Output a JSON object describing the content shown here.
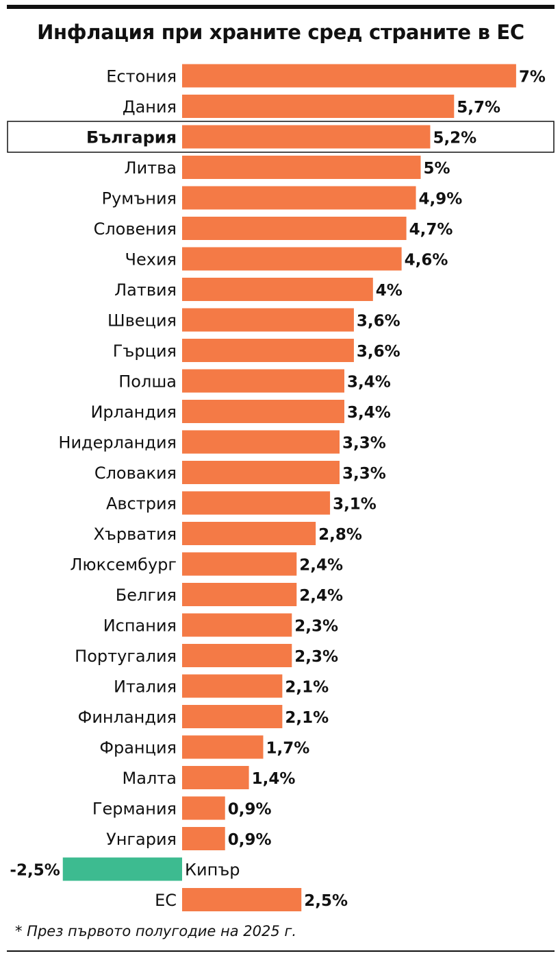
{
  "title": "Инфлация при храните сред страните в ЕС",
  "footnote": "* През първото полугодие на 2025 г.",
  "colors": {
    "positive": "#F47A46",
    "negative": "#3DBB90",
    "text": "#111111",
    "highlight_border": "#111111"
  },
  "chart_data": {
    "type": "bar",
    "orientation": "horizontal",
    "title": "Инфлация при храните сред страните в ЕС",
    "highlight": "България",
    "categories": [
      "Естония",
      "Дания",
      "България",
      "Литва",
      "Румъния",
      "Словения",
      "Чехия",
      "Латвия",
      "Швеция",
      "Гърция",
      "Полша",
      "Ирландия",
      "Нидерландия",
      "Словакия",
      "Австрия",
      "Хърватия",
      "Люксембург",
      "Белгия",
      "Испания",
      "Португалия",
      "Италия",
      "Финландия",
      "Франция",
      "Малта",
      "Германия",
      "Унгария",
      "Кипър",
      "ЕС"
    ],
    "values": [
      7,
      5.7,
      5.2,
      5,
      4.9,
      4.7,
      4.6,
      4,
      3.6,
      3.6,
      3.4,
      3.4,
      3.3,
      3.3,
      3.1,
      2.8,
      2.4,
      2.4,
      2.3,
      2.3,
      2.1,
      2.1,
      1.7,
      1.4,
      0.9,
      0.9,
      -2.5,
      2.5
    ],
    "labels": [
      "7%",
      "5,7%",
      "5,2%",
      "5%",
      "4,9%",
      "4,7%",
      "4,6%",
      "4%",
      "3,6%",
      "3,6%",
      "3,4%",
      "3,4%",
      "3,3%",
      "3,3%",
      "3,1%",
      "2,8%",
      "2,4%",
      "2,4%",
      "2,3%",
      "2,3%",
      "2,1%",
      "2,1%",
      "1,7%",
      "1,4%",
      "0,9%",
      "0,9%",
      "-2,5%",
      "2,5%"
    ],
    "unit": "%",
    "grid": false,
    "legend": "none"
  }
}
